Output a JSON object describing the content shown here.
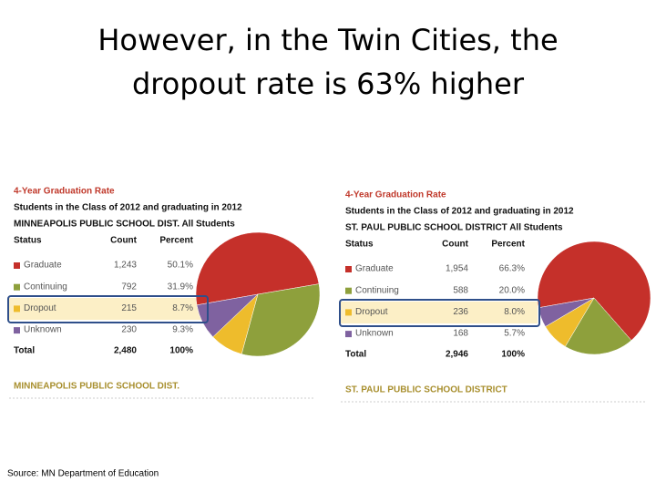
{
  "slide": {
    "title_lines": [
      "However, in the Twin Cities, the",
      "dropout rate is 63% higher"
    ],
    "source": "Source: MN Department of Education"
  },
  "panels": [
    {
      "heading": "4-Year Graduation Rate",
      "subtitle": "Students in the Class of 2012 and graduating in 2012",
      "district_line": "MINNEAPOLIS PUBLIC SCHOOL DIST. All Students",
      "columns": [
        "Status",
        "Count",
        "Percent"
      ],
      "rows": [
        [
          "Graduate",
          "1,243",
          "50.1%"
        ],
        [
          "Continuing",
          "792",
          "31.9%"
        ],
        [
          "Dropout",
          "215",
          "8.7%"
        ],
        [
          "Unknown",
          "230",
          "9.3%"
        ]
      ],
      "total": [
        "Total",
        "2,480",
        "100%"
      ],
      "footer": "MINNEAPOLIS PUBLIC SCHOOL DIST."
    },
    {
      "heading": "4-Year Graduation Rate",
      "subtitle": "Students in the Class of 2012 and graduating in 2012",
      "district_line": "ST. PAUL PUBLIC SCHOOL DISTRICT All Students",
      "columns": [
        "Status",
        "Count",
        "Percent"
      ],
      "rows": [
        [
          "Graduate",
          "1,954",
          "66.3%"
        ],
        [
          "Continuing",
          "588",
          "20.0%"
        ],
        [
          "Dropout",
          "236",
          "8.0%"
        ],
        [
          "Unknown",
          "168",
          "5.7%"
        ]
      ],
      "total": [
        "Total",
        "2,946",
        "100%"
      ],
      "footer": "ST. PAUL PUBLIC SCHOOL DISTRICT"
    }
  ],
  "chart_data": [
    {
      "type": "pie",
      "values": [
        50.1,
        31.9,
        8.7,
        9.3
      ],
      "colors": [
        "#c5302a",
        "#8ea03c",
        "#eebc2c",
        "#7f62a0"
      ]
    },
    {
      "type": "pie",
      "values": [
        66.3,
        20.0,
        8.0,
        5.7
      ],
      "colors": [
        "#c5302a",
        "#8ea03c",
        "#eebc2c",
        "#7f62a0"
      ]
    }
  ]
}
